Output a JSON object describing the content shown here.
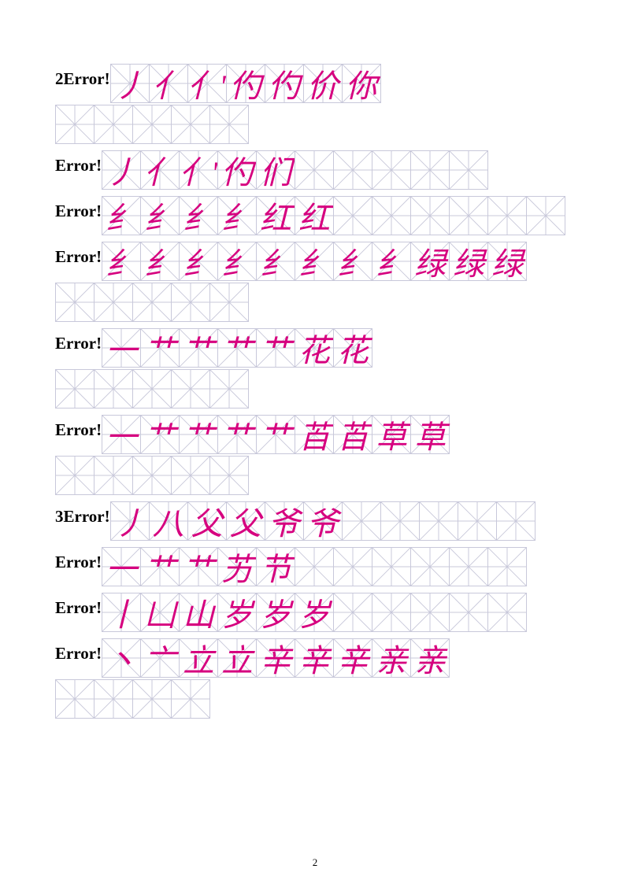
{
  "stroke_color": "#d6007f",
  "grid_border_color": "#c8c8da",
  "grid_line_color": "#c8c8da",
  "cell_size": 50,
  "page_number": "2",
  "rows": [
    {
      "label": "2Error!",
      "strokes": [
        "丿",
        "亻",
        "亻'",
        "仢",
        "仢",
        "价",
        "你"
      ],
      "empty": 0,
      "continuation_empty": 5
    },
    {
      "label": "Error!",
      "strokes": [
        "丿",
        "亻",
        "亻'",
        "仢",
        "们"
      ],
      "empty": 5,
      "continuation_empty": 0
    },
    {
      "label": "Error!",
      "strokes": [
        "纟",
        "纟",
        "纟",
        "纟",
        "红",
        "红"
      ],
      "empty": 6,
      "continuation_empty": 0
    },
    {
      "label": "Error!",
      "strokes": [
        "纟",
        "纟",
        "纟",
        "纟",
        "纟",
        "纟",
        "纟",
        "纟",
        "绿",
        "绿",
        "绿"
      ],
      "empty": 0,
      "continuation_empty": 5
    },
    {
      "label": "Error!",
      "strokes": [
        "一",
        "艹",
        "艹",
        "艹",
        "艹",
        "花",
        "花"
      ],
      "empty": 0,
      "continuation_empty": 5
    },
    {
      "label": "Error!",
      "strokes": [
        "一",
        "艹",
        "艹",
        "艹",
        "艹",
        "苩",
        "苩",
        "草",
        "草"
      ],
      "empty": 0,
      "continuation_empty": 5
    },
    {
      "label": "3Error!",
      "strokes": [
        "丿",
        "八",
        "父",
        "父",
        "爷",
        "爷"
      ],
      "empty": 5,
      "continuation_empty": 0
    },
    {
      "label": "Error!",
      "strokes": [
        "一",
        "艹",
        "艹",
        "艻",
        "节"
      ],
      "empty": 6,
      "continuation_empty": 0
    },
    {
      "label": "Error!",
      "strokes": [
        "丨",
        "凵",
        "山",
        "岁",
        "岁",
        "岁"
      ],
      "empty": 5,
      "continuation_empty": 0
    },
    {
      "label": "Error!",
      "strokes": [
        "丶",
        "亠",
        "立",
        "立",
        "辛",
        "辛",
        "辛",
        "亲",
        "亲"
      ],
      "empty": 0,
      "continuation_empty": 4
    }
  ]
}
